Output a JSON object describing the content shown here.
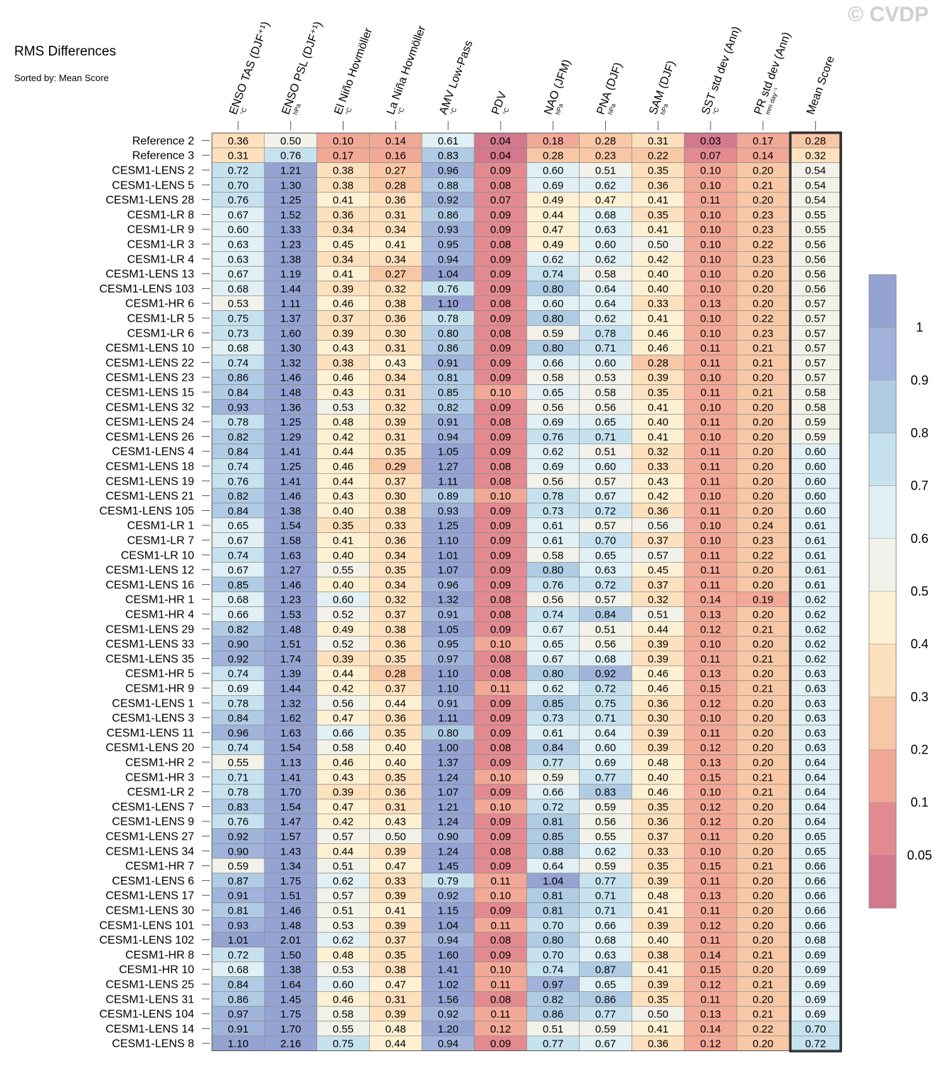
{
  "title": "RMS Differences",
  "subtitle": "Sorted by: Mean Score",
  "watermark": "© CVDP",
  "chart_data": {
    "type": "heatmap",
    "title": "RMS Differences",
    "subtitle": "Sorted by: Mean Score",
    "columns": [
      {
        "label": "ENSO TAS (DJF⁺¹)",
        "unit": "°C"
      },
      {
        "label": "ENSO PSL (DJF⁺¹)",
        "unit": "hPa"
      },
      {
        "label": "El Niño Hovmöller",
        "unit": "°C"
      },
      {
        "label": "La Niña Hovmöller",
        "unit": "°C"
      },
      {
        "label": "AMV Low-Pass",
        "unit": "°C"
      },
      {
        "label": "PDV",
        "unit": "°C"
      },
      {
        "label": "NAO (JFM)",
        "unit": "hPa"
      },
      {
        "label": "PNA (DJF)",
        "unit": "hPa"
      },
      {
        "label": "SAM (DJF)",
        "unit": "hPa"
      },
      {
        "label": "SST std dev (Ann)",
        "unit": "°C"
      },
      {
        "label": "PR std dev (Ann)",
        "unit": "mm day⁻¹"
      },
      {
        "label": "Mean Score",
        "unit": ""
      }
    ],
    "rows": [
      {
        "label": "Reference 2",
        "values": [
          0.36,
          0.5,
          0.1,
          0.14,
          0.61,
          0.04,
          0.18,
          0.28,
          0.31,
          0.03,
          0.17,
          0.28
        ]
      },
      {
        "label": "Reference 3",
        "values": [
          0.31,
          0.76,
          0.17,
          0.16,
          0.83,
          0.04,
          0.28,
          0.23,
          0.22,
          0.07,
          0.14,
          0.32
        ]
      },
      {
        "label": "CESM1-LENS 2",
        "values": [
          0.72,
          1.21,
          0.38,
          0.27,
          0.96,
          0.09,
          0.6,
          0.51,
          0.35,
          0.1,
          0.2,
          0.54
        ]
      },
      {
        "label": "CESM1-LENS 5",
        "values": [
          0.7,
          1.3,
          0.38,
          0.28,
          0.88,
          0.08,
          0.69,
          0.62,
          0.36,
          0.1,
          0.21,
          0.54
        ]
      },
      {
        "label": "CESM1-LENS 28",
        "values": [
          0.76,
          1.25,
          0.41,
          0.36,
          0.92,
          0.07,
          0.49,
          0.47,
          0.41,
          0.11,
          0.2,
          0.54
        ]
      },
      {
        "label": "CESM1-LR 8",
        "values": [
          0.67,
          1.52,
          0.36,
          0.31,
          0.86,
          0.09,
          0.44,
          0.68,
          0.35,
          0.1,
          0.23,
          0.55
        ]
      },
      {
        "label": "CESM1-LR 9",
        "values": [
          0.6,
          1.33,
          0.34,
          0.34,
          0.93,
          0.09,
          0.47,
          0.63,
          0.41,
          0.1,
          0.23,
          0.55
        ]
      },
      {
        "label": "CESM1-LR 3",
        "values": [
          0.63,
          1.23,
          0.45,
          0.41,
          0.95,
          0.08,
          0.49,
          0.6,
          0.5,
          0.1,
          0.22,
          0.56
        ]
      },
      {
        "label": "CESM1-LR 4",
        "values": [
          0.63,
          1.38,
          0.34,
          0.34,
          0.94,
          0.09,
          0.62,
          0.62,
          0.42,
          0.1,
          0.23,
          0.56
        ]
      },
      {
        "label": "CESM1-LENS 13",
        "values": [
          0.67,
          1.19,
          0.41,
          0.27,
          1.04,
          0.09,
          0.74,
          0.58,
          0.4,
          0.1,
          0.2,
          0.56
        ]
      },
      {
        "label": "CESM1-LENS 103",
        "values": [
          0.68,
          1.44,
          0.39,
          0.32,
          0.76,
          0.09,
          0.8,
          0.64,
          0.4,
          0.1,
          0.2,
          0.56
        ]
      },
      {
        "label": "CESM1-HR 6",
        "values": [
          0.53,
          1.11,
          0.46,
          0.38,
          1.1,
          0.08,
          0.6,
          0.64,
          0.33,
          0.13,
          0.2,
          0.57
        ]
      },
      {
        "label": "CESM1-LR 5",
        "values": [
          0.75,
          1.37,
          0.37,
          0.36,
          0.78,
          0.09,
          0.8,
          0.62,
          0.41,
          0.1,
          0.22,
          0.57
        ]
      },
      {
        "label": "CESM1-LR 6",
        "values": [
          0.73,
          1.6,
          0.39,
          0.3,
          0.8,
          0.08,
          0.59,
          0.78,
          0.46,
          0.1,
          0.23,
          0.57
        ]
      },
      {
        "label": "CESM1-LENS 10",
        "values": [
          0.68,
          1.3,
          0.43,
          0.31,
          0.86,
          0.09,
          0.8,
          0.71,
          0.46,
          0.11,
          0.21,
          0.57
        ]
      },
      {
        "label": "CESM1-LENS 22",
        "values": [
          0.74,
          1.32,
          0.38,
          0.43,
          0.91,
          0.09,
          0.66,
          0.6,
          0.28,
          0.11,
          0.21,
          0.57
        ]
      },
      {
        "label": "CESM1-LENS 23",
        "values": [
          0.86,
          1.46,
          0.46,
          0.34,
          0.81,
          0.09,
          0.58,
          0.53,
          0.39,
          0.1,
          0.2,
          0.57
        ]
      },
      {
        "label": "CESM1-LENS 15",
        "values": [
          0.84,
          1.48,
          0.43,
          0.31,
          0.85,
          0.1,
          0.65,
          0.58,
          0.35,
          0.11,
          0.21,
          0.58
        ]
      },
      {
        "label": "CESM1-LENS 32",
        "values": [
          0.93,
          1.36,
          0.53,
          0.32,
          0.82,
          0.09,
          0.56,
          0.56,
          0.41,
          0.1,
          0.2,
          0.58
        ]
      },
      {
        "label": "CESM1-LENS 24",
        "values": [
          0.78,
          1.25,
          0.48,
          0.39,
          0.91,
          0.08,
          0.69,
          0.65,
          0.4,
          0.11,
          0.2,
          0.59
        ]
      },
      {
        "label": "CESM1-LENS 26",
        "values": [
          0.82,
          1.29,
          0.42,
          0.31,
          0.94,
          0.09,
          0.76,
          0.71,
          0.41,
          0.1,
          0.2,
          0.59
        ]
      },
      {
        "label": "CESM1-LENS 4",
        "values": [
          0.84,
          1.41,
          0.44,
          0.35,
          1.05,
          0.09,
          0.62,
          0.51,
          0.32,
          0.11,
          0.2,
          0.6
        ]
      },
      {
        "label": "CESM1-LENS 18",
        "values": [
          0.74,
          1.25,
          0.46,
          0.29,
          1.27,
          0.08,
          0.69,
          0.6,
          0.33,
          0.11,
          0.2,
          0.6
        ]
      },
      {
        "label": "CESM1-LENS 19",
        "values": [
          0.76,
          1.41,
          0.44,
          0.37,
          1.11,
          0.08,
          0.56,
          0.57,
          0.43,
          0.11,
          0.2,
          0.6
        ]
      },
      {
        "label": "CESM1-LENS 21",
        "values": [
          0.82,
          1.46,
          0.43,
          0.3,
          0.89,
          0.1,
          0.78,
          0.67,
          0.42,
          0.1,
          0.2,
          0.6
        ]
      },
      {
        "label": "CESM1-LENS 105",
        "values": [
          0.84,
          1.38,
          0.4,
          0.38,
          0.93,
          0.09,
          0.73,
          0.72,
          0.36,
          0.11,
          0.2,
          0.6
        ]
      },
      {
        "label": "CESM1-LR 1",
        "values": [
          0.65,
          1.54,
          0.35,
          0.33,
          1.25,
          0.09,
          0.61,
          0.57,
          0.56,
          0.1,
          0.24,
          0.61
        ]
      },
      {
        "label": "CESM1-LR 7",
        "values": [
          0.67,
          1.58,
          0.41,
          0.36,
          1.1,
          0.09,
          0.61,
          0.7,
          0.37,
          0.1,
          0.23,
          0.61
        ]
      },
      {
        "label": "CESM1-LR 10",
        "values": [
          0.74,
          1.63,
          0.4,
          0.34,
          1.01,
          0.09,
          0.58,
          0.65,
          0.57,
          0.11,
          0.22,
          0.61
        ]
      },
      {
        "label": "CESM1-LENS 12",
        "values": [
          0.67,
          1.27,
          0.55,
          0.35,
          1.07,
          0.09,
          0.8,
          0.63,
          0.45,
          0.11,
          0.2,
          0.61
        ]
      },
      {
        "label": "CESM1-LENS 16",
        "values": [
          0.85,
          1.46,
          0.4,
          0.34,
          0.96,
          0.09,
          0.76,
          0.72,
          0.37,
          0.11,
          0.2,
          0.61
        ]
      },
      {
        "label": "CESM1-HR 1",
        "values": [
          0.68,
          1.23,
          0.6,
          0.32,
          1.32,
          0.08,
          0.56,
          0.57,
          0.32,
          0.14,
          0.19,
          0.62
        ]
      },
      {
        "label": "CESM1-HR 4",
        "values": [
          0.66,
          1.53,
          0.52,
          0.37,
          0.91,
          0.08,
          0.74,
          0.84,
          0.51,
          0.13,
          0.2,
          0.62
        ]
      },
      {
        "label": "CESM1-LENS 29",
        "values": [
          0.82,
          1.48,
          0.49,
          0.38,
          1.05,
          0.09,
          0.67,
          0.51,
          0.44,
          0.12,
          0.21,
          0.62
        ]
      },
      {
        "label": "CESM1-LENS 33",
        "values": [
          0.9,
          1.51,
          0.52,
          0.36,
          0.95,
          0.1,
          0.65,
          0.56,
          0.39,
          0.1,
          0.2,
          0.62
        ]
      },
      {
        "label": "CESM1-LENS 35",
        "values": [
          0.92,
          1.74,
          0.39,
          0.35,
          0.97,
          0.08,
          0.67,
          0.68,
          0.39,
          0.11,
          0.21,
          0.62
        ]
      },
      {
        "label": "CESM1-HR 5",
        "values": [
          0.74,
          1.39,
          0.44,
          0.28,
          1.1,
          0.08,
          0.8,
          0.92,
          0.46,
          0.13,
          0.2,
          0.63
        ]
      },
      {
        "label": "CESM1-HR 9",
        "values": [
          0.69,
          1.44,
          0.42,
          0.37,
          1.1,
          0.11,
          0.62,
          0.72,
          0.46,
          0.15,
          0.21,
          0.63
        ]
      },
      {
        "label": "CESM1-LENS 1",
        "values": [
          0.78,
          1.32,
          0.56,
          0.44,
          0.91,
          0.09,
          0.85,
          0.75,
          0.36,
          0.12,
          0.2,
          0.63
        ]
      },
      {
        "label": "CESM1-LENS 3",
        "values": [
          0.84,
          1.62,
          0.47,
          0.36,
          1.11,
          0.09,
          0.73,
          0.71,
          0.3,
          0.1,
          0.2,
          0.63
        ]
      },
      {
        "label": "CESM1-LENS 11",
        "values": [
          0.96,
          1.63,
          0.66,
          0.35,
          0.8,
          0.09,
          0.61,
          0.64,
          0.39,
          0.11,
          0.2,
          0.63
        ]
      },
      {
        "label": "CESM1-LENS 20",
        "values": [
          0.74,
          1.54,
          0.58,
          0.4,
          1.0,
          0.08,
          0.84,
          0.6,
          0.39,
          0.12,
          0.2,
          0.63
        ]
      },
      {
        "label": "CESM1-HR 2",
        "values": [
          0.55,
          1.13,
          0.46,
          0.4,
          1.37,
          0.09,
          0.77,
          0.69,
          0.48,
          0.13,
          0.2,
          0.64
        ]
      },
      {
        "label": "CESM1-HR 3",
        "values": [
          0.71,
          1.41,
          0.43,
          0.35,
          1.24,
          0.1,
          0.59,
          0.77,
          0.4,
          0.15,
          0.21,
          0.64
        ]
      },
      {
        "label": "CESM1-LR 2",
        "values": [
          0.78,
          1.7,
          0.39,
          0.36,
          1.07,
          0.09,
          0.66,
          0.83,
          0.46,
          0.1,
          0.21,
          0.64
        ]
      },
      {
        "label": "CESM1-LENS 7",
        "values": [
          0.83,
          1.54,
          0.47,
          0.31,
          1.21,
          0.1,
          0.72,
          0.59,
          0.35,
          0.12,
          0.2,
          0.64
        ]
      },
      {
        "label": "CESM1-LENS 9",
        "values": [
          0.76,
          1.47,
          0.42,
          0.43,
          1.24,
          0.09,
          0.81,
          0.56,
          0.36,
          0.12,
          0.2,
          0.64
        ]
      },
      {
        "label": "CESM1-LENS 27",
        "values": [
          0.92,
          1.57,
          0.57,
          0.5,
          0.9,
          0.09,
          0.85,
          0.55,
          0.37,
          0.11,
          0.2,
          0.65
        ]
      },
      {
        "label": "CESM1-LENS 34",
        "values": [
          0.9,
          1.43,
          0.44,
          0.39,
          1.24,
          0.08,
          0.88,
          0.62,
          0.33,
          0.1,
          0.2,
          0.65
        ]
      },
      {
        "label": "CESM1-HR 7",
        "values": [
          0.59,
          1.34,
          0.51,
          0.47,
          1.45,
          0.09,
          0.64,
          0.59,
          0.35,
          0.15,
          0.21,
          0.66
        ]
      },
      {
        "label": "CESM1-LENS 6",
        "values": [
          0.87,
          1.75,
          0.62,
          0.33,
          0.79,
          0.11,
          1.04,
          0.77,
          0.39,
          0.11,
          0.2,
          0.66
        ]
      },
      {
        "label": "CESM1-LENS 17",
        "values": [
          0.91,
          1.51,
          0.57,
          0.39,
          0.92,
          0.1,
          0.81,
          0.71,
          0.48,
          0.13,
          0.2,
          0.66
        ]
      },
      {
        "label": "CESM1-LENS 30",
        "values": [
          0.81,
          1.46,
          0.51,
          0.41,
          1.15,
          0.09,
          0.81,
          0.71,
          0.41,
          0.11,
          0.2,
          0.66
        ]
      },
      {
        "label": "CESM1-LENS 101",
        "values": [
          0.93,
          1.48,
          0.53,
          0.39,
          1.04,
          0.11,
          0.7,
          0.66,
          0.39,
          0.12,
          0.2,
          0.66
        ]
      },
      {
        "label": "CESM1-LENS 102",
        "values": [
          1.01,
          2.01,
          0.62,
          0.37,
          0.94,
          0.08,
          0.8,
          0.68,
          0.4,
          0.11,
          0.2,
          0.68
        ]
      },
      {
        "label": "CESM1-HR 8",
        "values": [
          0.72,
          1.5,
          0.48,
          0.35,
          1.6,
          0.09,
          0.7,
          0.63,
          0.38,
          0.14,
          0.21,
          0.69
        ]
      },
      {
        "label": "CESM1-HR 10",
        "values": [
          0.68,
          1.38,
          0.53,
          0.38,
          1.41,
          0.1,
          0.74,
          0.87,
          0.41,
          0.15,
          0.2,
          0.69
        ]
      },
      {
        "label": "CESM1-LENS 25",
        "values": [
          0.84,
          1.64,
          0.6,
          0.47,
          1.02,
          0.11,
          0.97,
          0.65,
          0.39,
          0.12,
          0.21,
          0.69
        ]
      },
      {
        "label": "CESM1-LENS 31",
        "values": [
          0.86,
          1.45,
          0.46,
          0.31,
          1.56,
          0.08,
          0.82,
          0.86,
          0.35,
          0.11,
          0.2,
          0.69
        ]
      },
      {
        "label": "CESM1-LENS 104",
        "values": [
          0.97,
          1.75,
          0.58,
          0.39,
          0.92,
          0.11,
          0.86,
          0.77,
          0.5,
          0.13,
          0.21,
          0.69
        ]
      },
      {
        "label": "CESM1-LENS 14",
        "values": [
          0.91,
          1.7,
          0.55,
          0.48,
          1.2,
          0.12,
          0.51,
          0.59,
          0.41,
          0.14,
          0.22,
          0.7
        ]
      },
      {
        "label": "CESM1-LENS 8",
        "values": [
          1.1,
          2.16,
          0.75,
          0.44,
          0.94,
          0.09,
          0.77,
          0.67,
          0.36,
          0.12,
          0.2,
          0.72
        ]
      }
    ],
    "colorbar": {
      "levels": [
        0.05,
        0.1,
        0.2,
        0.3,
        0.4,
        0.5,
        0.6,
        0.7,
        0.8,
        0.9,
        1
      ],
      "tick_labels": [
        "1",
        "0.9",
        "0.8",
        "0.7",
        "0.6",
        "0.5",
        "0.4",
        "0.3",
        "0.2",
        "0.1",
        "0.05"
      ],
      "colors_low_to_high": [
        "#d4788e",
        "#e28a90",
        "#f2a896",
        "#f8c7a6",
        "#fde0bd",
        "#fdf0d3",
        "#f2f2ea",
        "#e0f0f5",
        "#c7e2ef",
        "#b0cce4",
        "#a0b3da",
        "#95a3d2"
      ]
    },
    "highlight_column": "Mean Score"
  }
}
